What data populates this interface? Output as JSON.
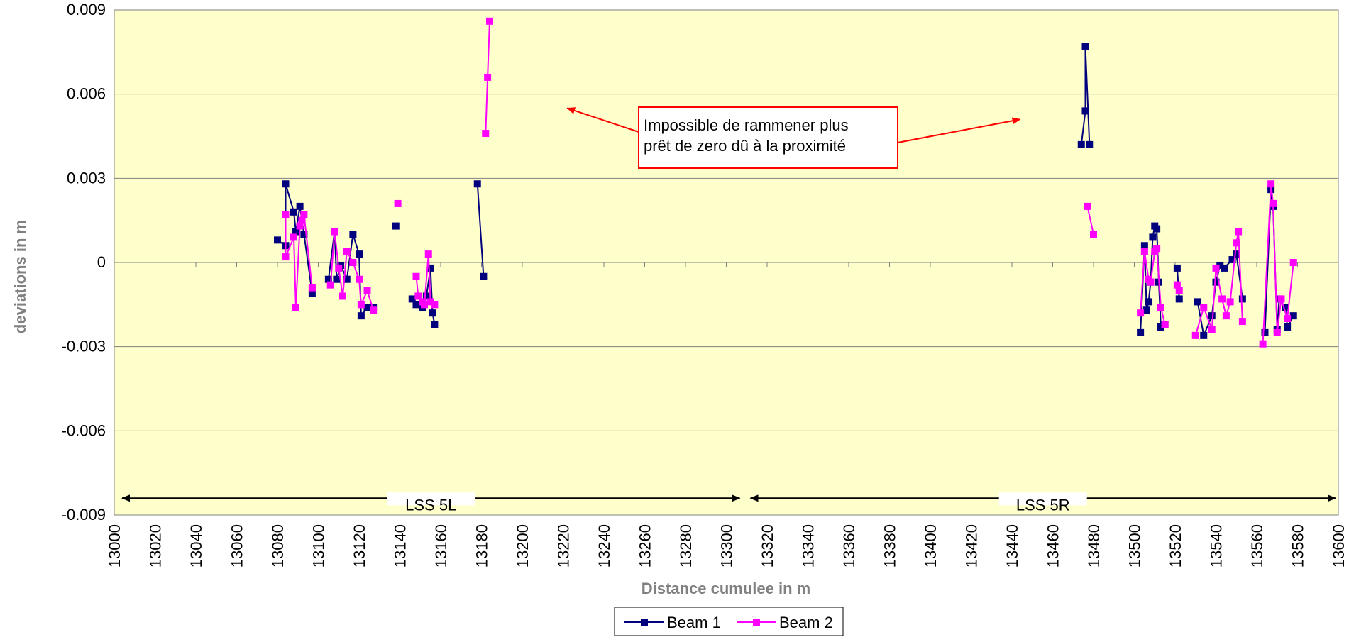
{
  "chart_data": {
    "type": "line",
    "xlabel": "Distance cumulee in m",
    "ylabel": "deviations in m",
    "xlim": [
      13000,
      13600
    ],
    "ylim": [
      -0.009,
      0.009
    ],
    "x_ticks": [
      13000,
      13020,
      13040,
      13060,
      13080,
      13100,
      13120,
      13140,
      13160,
      13180,
      13200,
      13220,
      13240,
      13260,
      13280,
      13300,
      13320,
      13340,
      13360,
      13380,
      13400,
      13420,
      13440,
      13460,
      13480,
      13500,
      13520,
      13540,
      13560,
      13580,
      13600
    ],
    "y_ticks": [
      0.009,
      0.006,
      0.003,
      0,
      -0.003,
      -0.006,
      -0.009
    ],
    "y_tick_labels": [
      "0.009",
      "0.006",
      "0.003",
      "0",
      "-0.003",
      "-0.006",
      "-0.009"
    ],
    "grid": "horizontal",
    "legend_position": "bottom",
    "annotation": {
      "lines": [
        "Impossible de rammener plus",
        "prêt de zero dû à la proximité"
      ],
      "arrow_targets": [
        [
          13222,
          0.0055
        ],
        [
          13444,
          0.0051
        ]
      ]
    },
    "regions": [
      {
        "label": "LSS 5L",
        "x_start": 13000,
        "x_end": 13308,
        "y": -0.0084
      },
      {
        "label": "LSS 5R",
        "x_start": 13308,
        "x_end": 13600,
        "y": -0.0084
      }
    ],
    "series": [
      {
        "name": "Beam 1",
        "color": "#00007F",
        "segments": [
          [
            [
              13080,
              0.0008
            ],
            [
              13084,
              0.0006
            ],
            [
              13084,
              0.0028
            ],
            [
              13088,
              0.0018
            ],
            [
              13089,
              0.0011
            ],
            [
              13091,
              0.002
            ],
            [
              13093,
              0.001
            ],
            [
              13097,
              -0.0011
            ]
          ],
          [
            [
              13105,
              -0.0006
            ],
            [
              13108,
              0.0011
            ],
            [
              13109,
              -0.0006
            ],
            [
              13111,
              -0.0001
            ],
            [
              13114,
              -0.0006
            ],
            [
              13117,
              0.001
            ],
            [
              13120,
              0.0003
            ],
            [
              13121,
              -0.0019
            ],
            [
              13124,
              -0.0016
            ],
            [
              13127,
              -0.0016
            ]
          ],
          [
            [
              13138,
              0.0013
            ]
          ],
          [
            [
              13146,
              -0.0013
            ],
            [
              13148,
              -0.0015
            ],
            [
              13151,
              -0.0016
            ],
            [
              13153,
              -0.0012
            ],
            [
              13155,
              -0.0002
            ],
            [
              13156,
              -0.0018
            ],
            [
              13157,
              -0.0022
            ]
          ],
          [
            [
              13178,
              0.0028
            ],
            [
              13181,
              -0.0005
            ]
          ],
          [
            [
              13474,
              0.0042
            ],
            [
              13476,
              0.0054
            ],
            [
              13476,
              0.0077
            ],
            [
              13478,
              0.0042
            ]
          ],
          [
            [
              13503,
              -0.0025
            ],
            [
              13505,
              0.0006
            ],
            [
              13506,
              -0.0017
            ],
            [
              13507,
              -0.0014
            ],
            [
              13508,
              -0.0007
            ],
            [
              13509,
              0.0009
            ],
            [
              13510,
              0.0013
            ],
            [
              13511,
              0.0012
            ],
            [
              13512,
              -0.0007
            ],
            [
              13513,
              -0.0023
            ],
            [
              13515,
              -0.0022
            ]
          ],
          [
            [
              13521,
              -0.0002
            ],
            [
              13522,
              -0.0013
            ]
          ],
          [
            [
              13531,
              -0.0014
            ],
            [
              13534,
              -0.0026
            ],
            [
              13538,
              -0.0019
            ],
            [
              13540,
              -0.0007
            ],
            [
              13542,
              -0.0001
            ],
            [
              13544,
              -0.0002
            ],
            [
              13548,
              0.0001
            ],
            [
              13550,
              0.0003
            ],
            [
              13553,
              -0.0013
            ]
          ],
          [
            [
              13564,
              -0.0025
            ],
            [
              13567,
              0.0026
            ],
            [
              13568,
              0.002
            ],
            [
              13570,
              -0.0024
            ],
            [
              13571,
              -0.0013
            ],
            [
              13574,
              -0.0016
            ],
            [
              13575,
              -0.0023
            ],
            [
              13578,
              -0.0019
            ]
          ]
        ]
      },
      {
        "name": "Beam 2",
        "color": "#FF00FF",
        "segments": [
          [
            [
              13084,
              0.0017
            ],
            [
              13084,
              0.0002
            ],
            [
              13088,
              0.0009
            ],
            [
              13089,
              -0.0016
            ],
            [
              13091,
              0.0013
            ],
            [
              13092,
              0.0015
            ],
            [
              13093,
              0.0017
            ],
            [
              13097,
              -0.0009
            ]
          ],
          [
            [
              13106,
              -0.0008
            ],
            [
              13108,
              0.0011
            ],
            [
              13110,
              -0.0002
            ],
            [
              13112,
              -0.0012
            ],
            [
              13114,
              0.0004
            ],
            [
              13117,
              0.0
            ],
            [
              13120,
              -0.0006
            ],
            [
              13121,
              -0.0015
            ],
            [
              13124,
              -0.001
            ],
            [
              13127,
              -0.0017
            ]
          ],
          [
            [
              13139,
              0.0021
            ]
          ],
          [
            [
              13148,
              -0.0005
            ],
            [
              13149,
              -0.0012
            ],
            [
              13151,
              -0.0014
            ],
            [
              13152,
              -0.0015
            ],
            [
              13154,
              0.0003
            ],
            [
              13155,
              -0.0014
            ],
            [
              13157,
              -0.0015
            ]
          ],
          [
            [
              13182,
              0.0046
            ],
            [
              13183,
              0.0066
            ],
            [
              13184,
              0.0086
            ]
          ],
          [
            [
              13477,
              0.002
            ],
            [
              13480,
              0.001
            ]
          ],
          [
            [
              13503,
              -0.0018
            ],
            [
              13505,
              0.0004
            ],
            [
              13507,
              -0.0006
            ],
            [
              13508,
              -0.0007
            ],
            [
              13510,
              0.0004
            ],
            [
              13511,
              0.0005
            ],
            [
              13513,
              -0.0016
            ],
            [
              13515,
              -0.0022
            ]
          ],
          [
            [
              13521,
              -0.0008
            ],
            [
              13522,
              -0.001
            ]
          ],
          [
            [
              13530,
              -0.0026
            ],
            [
              13534,
              -0.0016
            ],
            [
              13538,
              -0.0024
            ],
            [
              13540,
              -0.0002
            ],
            [
              13543,
              -0.0013
            ],
            [
              13545,
              -0.0019
            ],
            [
              13547,
              -0.0014
            ],
            [
              13550,
              0.0007
            ],
            [
              13551,
              0.0011
            ],
            [
              13553,
              -0.0021
            ]
          ],
          [
            [
              13563,
              -0.0029
            ],
            [
              13567,
              0.0028
            ],
            [
              13568,
              0.0021
            ],
            [
              13570,
              -0.0025
            ],
            [
              13572,
              -0.0013
            ],
            [
              13575,
              -0.002
            ],
            [
              13578,
              0.0
            ]
          ]
        ]
      }
    ]
  }
}
